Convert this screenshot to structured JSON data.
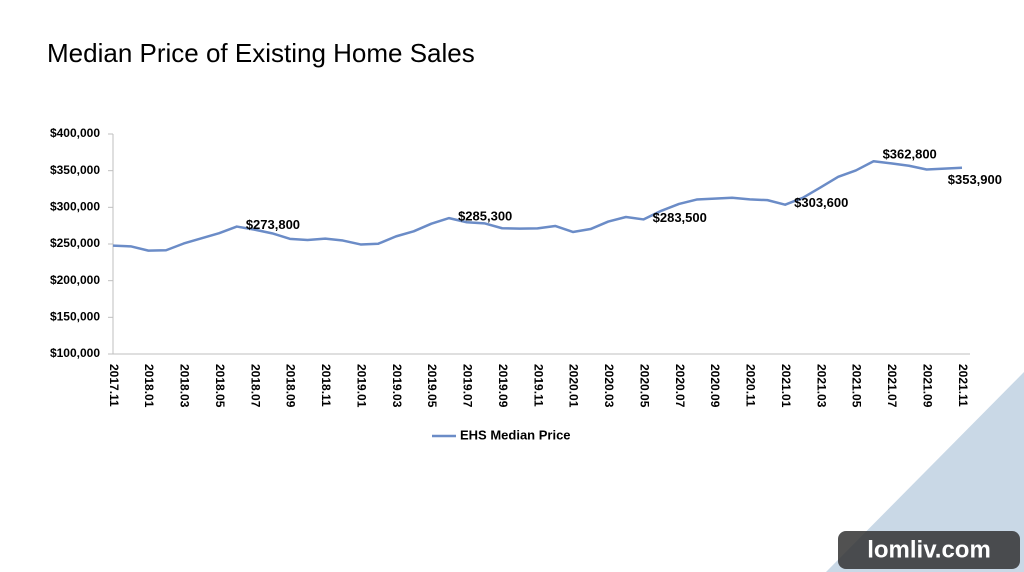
{
  "chart_data": {
    "type": "line",
    "title": "Median Price of Existing Home Sales",
    "categories": [
      "2017.11",
      null,
      "2018.01",
      null,
      "2018.03",
      null,
      "2018.05",
      null,
      "2018.07",
      null,
      "2018.09",
      null,
      "2018.11",
      null,
      "2019.01",
      null,
      "2019.03",
      null,
      "2019.05",
      null,
      "2019.07",
      null,
      "2019.09",
      null,
      "2019.11",
      null,
      "2020.01",
      null,
      "2020.03",
      null,
      "2020.05",
      null,
      "2020.07",
      null,
      "2020.09",
      null,
      "2020.11",
      null,
      "2021.01",
      null,
      "2021.03",
      null,
      "2021.05",
      null,
      "2021.07",
      null,
      "2021.09",
      null,
      "2021.11"
    ],
    "series": [
      {
        "name": "EHS Median Price",
        "color": "#6b8cc7",
        "values": [
          247800,
          246800,
          241000,
          241500,
          250700,
          257800,
          264800,
          273800,
          269600,
          264500,
          257000,
          255400,
          257300,
          254700,
          249400,
          250400,
          260400,
          267300,
          277700,
          285300,
          279700,
          278200,
          271500,
          270900,
          271300,
          274600,
          266400,
          270400,
          280600,
          286800,
          283500,
          295300,
          304600,
          310600,
          311800,
          313000,
          310800,
          309800,
          303600,
          313000,
          327100,
          341600,
          350300,
          362800,
          359900,
          356700,
          351600,
          352800,
          353900
        ],
        "value_labels": [
          null,
          null,
          null,
          null,
          null,
          null,
          null,
          "$273,800",
          null,
          null,
          null,
          null,
          null,
          null,
          null,
          null,
          null,
          null,
          null,
          "$285,300",
          null,
          null,
          null,
          null,
          null,
          null,
          null,
          null,
          null,
          null,
          "$283,500",
          null,
          null,
          null,
          null,
          null,
          null,
          null,
          "$303,600",
          null,
          null,
          null,
          null,
          "$362,800",
          null,
          null,
          null,
          null,
          "$353,900"
        ]
      }
    ],
    "ylim": [
      100000,
      400000
    ],
    "yticks": [
      {
        "value": 100000,
        "label": "$100,000"
      },
      {
        "value": 150000,
        "label": "$150,000"
      },
      {
        "value": 200000,
        "label": "$200,000"
      },
      {
        "value": 250000,
        "label": "$250,000"
      },
      {
        "value": 300000,
        "label": "$300,000"
      },
      {
        "value": 350000,
        "label": "$350,000"
      },
      {
        "value": 400000,
        "label": "$400,000"
      }
    ],
    "grid": false,
    "legend": "bottom"
  },
  "watermark": "lomliv.com"
}
